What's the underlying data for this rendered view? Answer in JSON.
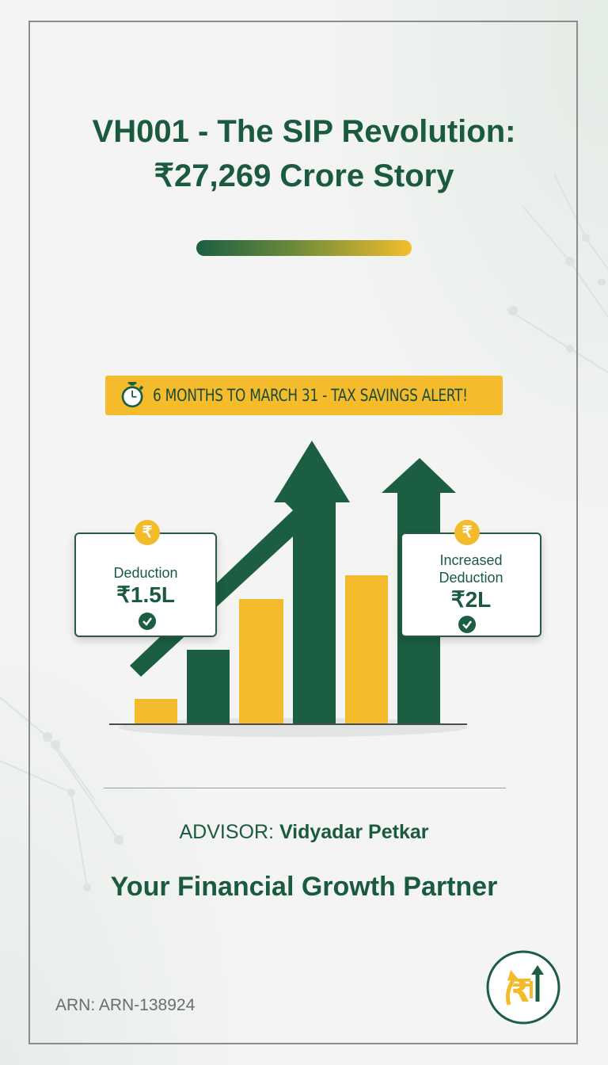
{
  "title": {
    "line1": "VH001 - The SIP Revolution:",
    "line2": "₹27,269 Crore Story"
  },
  "alert": {
    "text": "6 MONTHS TO MARCH 31 - TAX SAVINGS ALERT!",
    "icon": "stopwatch-icon"
  },
  "cards": {
    "left": {
      "icon": "rupee-coin-icon",
      "label": "Deduction",
      "value": "₹1.5L"
    },
    "right": {
      "icon": "rupee-coin-icon",
      "label_line1": "Increased",
      "label_line2": "Deduction",
      "value": "₹2L"
    }
  },
  "coin_symbol": "₹",
  "advisor": {
    "prefix": "ADVISOR:",
    "name": "Vidyadar Petkar"
  },
  "tagline": "Your Financial Growth Partner",
  "arn": "ARN: ARN-138924",
  "colors": {
    "primary_green": "#1b5e42",
    "accent_yellow": "#f4bb2c",
    "text_green": "#1a5a3e"
  }
}
